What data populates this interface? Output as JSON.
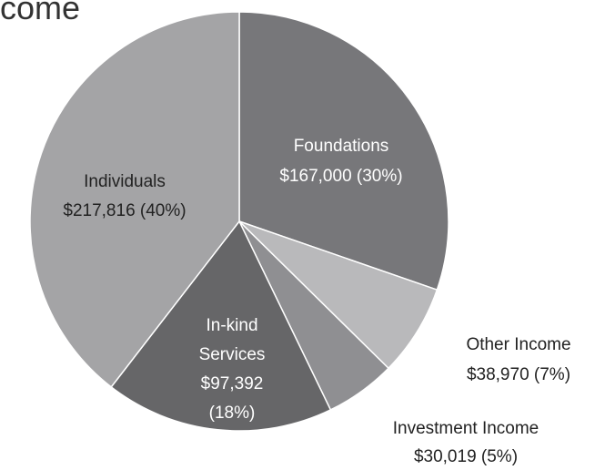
{
  "title": "come",
  "chart_data": {
    "type": "pie",
    "categories": [
      "Foundations",
      "Other Income",
      "Investment Income",
      "In-kind Services",
      "Individuals"
    ],
    "values": [
      167000,
      38970,
      30019,
      97392,
      217816
    ],
    "value_labels": [
      "$167,000 (30%)",
      "$38,970 (7%)",
      "$30,019 (5%)",
      "$97,392 (18%)",
      "$217,816  (40%)"
    ],
    "colors": [
      "#77777a",
      "#b9b9bb",
      "#8f8f92",
      "#666668",
      "#a4a4a6"
    ]
  }
}
